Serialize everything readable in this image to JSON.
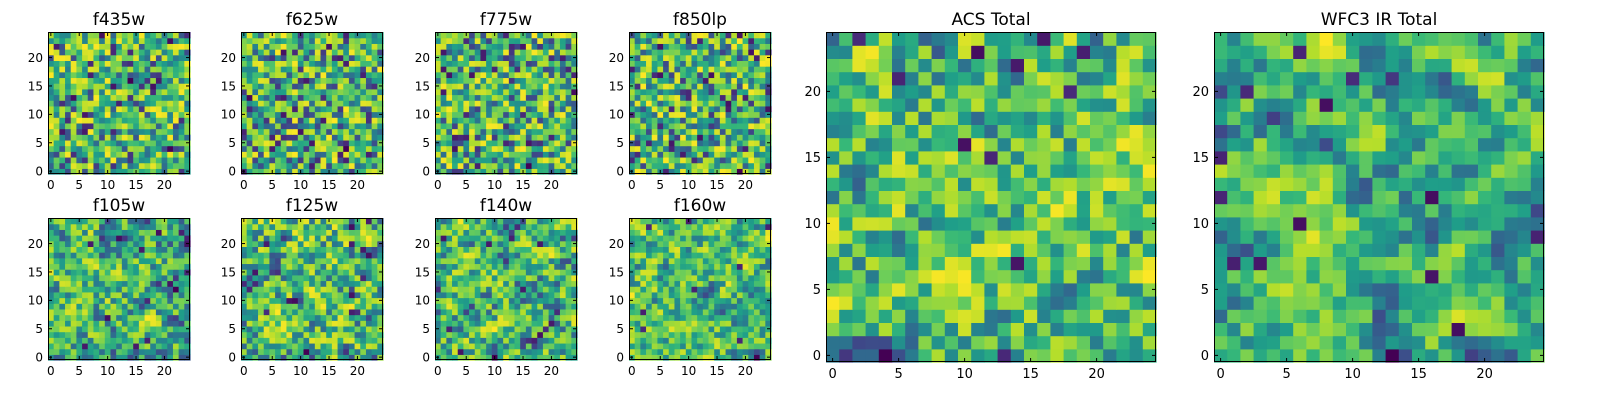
{
  "colors": {
    "colormap": "viridis",
    "axis": "#000000",
    "background": "#ffffff"
  },
  "chart_data": [
    {
      "type": "heatmap",
      "title": "f435w",
      "grid": false,
      "size": 25,
      "xlim": [
        0,
        24
      ],
      "ylim": [
        0,
        24
      ],
      "xticks": [
        0,
        5,
        10,
        15,
        20
      ],
      "yticks": [
        0,
        5,
        10,
        15,
        20
      ],
      "seed": 11,
      "smooth": 0
    },
    {
      "type": "heatmap",
      "title": "f625w",
      "grid": false,
      "size": 25,
      "xlim": [
        0,
        24
      ],
      "ylim": [
        0,
        24
      ],
      "xticks": [
        0,
        5,
        10,
        15,
        20
      ],
      "yticks": [
        0,
        5,
        10,
        15,
        20
      ],
      "seed": 23,
      "smooth": 0
    },
    {
      "type": "heatmap",
      "title": "f775w",
      "grid": false,
      "size": 25,
      "xlim": [
        0,
        24
      ],
      "ylim": [
        0,
        24
      ],
      "xticks": [
        0,
        5,
        10,
        15,
        20
      ],
      "yticks": [
        0,
        5,
        10,
        15,
        20
      ],
      "seed": 37,
      "smooth": 0
    },
    {
      "type": "heatmap",
      "title": "f850lp",
      "grid": false,
      "size": 25,
      "xlim": [
        0,
        24
      ],
      "ylim": [
        0,
        24
      ],
      "xticks": [
        0,
        5,
        10,
        15,
        20
      ],
      "yticks": [
        0,
        5,
        10,
        15,
        20
      ],
      "seed": 41,
      "smooth": 0
    },
    {
      "type": "heatmap",
      "title": "f105w",
      "grid": false,
      "size": 25,
      "xlim": [
        0,
        24
      ],
      "ylim": [
        0,
        24
      ],
      "xticks": [
        0,
        5,
        10,
        15,
        20
      ],
      "yticks": [
        0,
        5,
        10,
        15,
        20
      ],
      "seed": 53,
      "smooth": 1
    },
    {
      "type": "heatmap",
      "title": "f125w",
      "grid": false,
      "size": 25,
      "xlim": [
        0,
        24
      ],
      "ylim": [
        0,
        24
      ],
      "xticks": [
        0,
        5,
        10,
        15,
        20
      ],
      "yticks": [
        0,
        5,
        10,
        15,
        20
      ],
      "seed": 67,
      "smooth": 1
    },
    {
      "type": "heatmap",
      "title": "f140w",
      "grid": false,
      "size": 25,
      "xlim": [
        0,
        24
      ],
      "ylim": [
        0,
        24
      ],
      "xticks": [
        0,
        5,
        10,
        15,
        20
      ],
      "yticks": [
        0,
        5,
        10,
        15,
        20
      ],
      "seed": 71,
      "smooth": 1
    },
    {
      "type": "heatmap",
      "title": "f160w",
      "grid": false,
      "size": 25,
      "xlim": [
        0,
        24
      ],
      "ylim": [
        0,
        24
      ],
      "xticks": [
        0,
        5,
        10,
        15,
        20
      ],
      "yticks": [
        0,
        5,
        10,
        15,
        20
      ],
      "seed": 83,
      "smooth": 1
    },
    {
      "type": "heatmap",
      "title": "ACS Total",
      "grid": false,
      "size": 25,
      "xlim": [
        0,
        24
      ],
      "ylim": [
        0,
        24
      ],
      "xticks": [
        0,
        5,
        10,
        15,
        20
      ],
      "yticks": [
        0,
        5,
        10,
        15,
        20
      ],
      "seed": 97,
      "smooth": 1
    },
    {
      "type": "heatmap",
      "title": "WFC3 IR Total",
      "grid": false,
      "size": 25,
      "xlim": [
        0,
        24
      ],
      "ylim": [
        0,
        24
      ],
      "xticks": [
        0,
        5,
        10,
        15,
        20
      ],
      "yticks": [
        0,
        5,
        10,
        15,
        20
      ],
      "seed": 101,
      "smooth": 2
    }
  ]
}
